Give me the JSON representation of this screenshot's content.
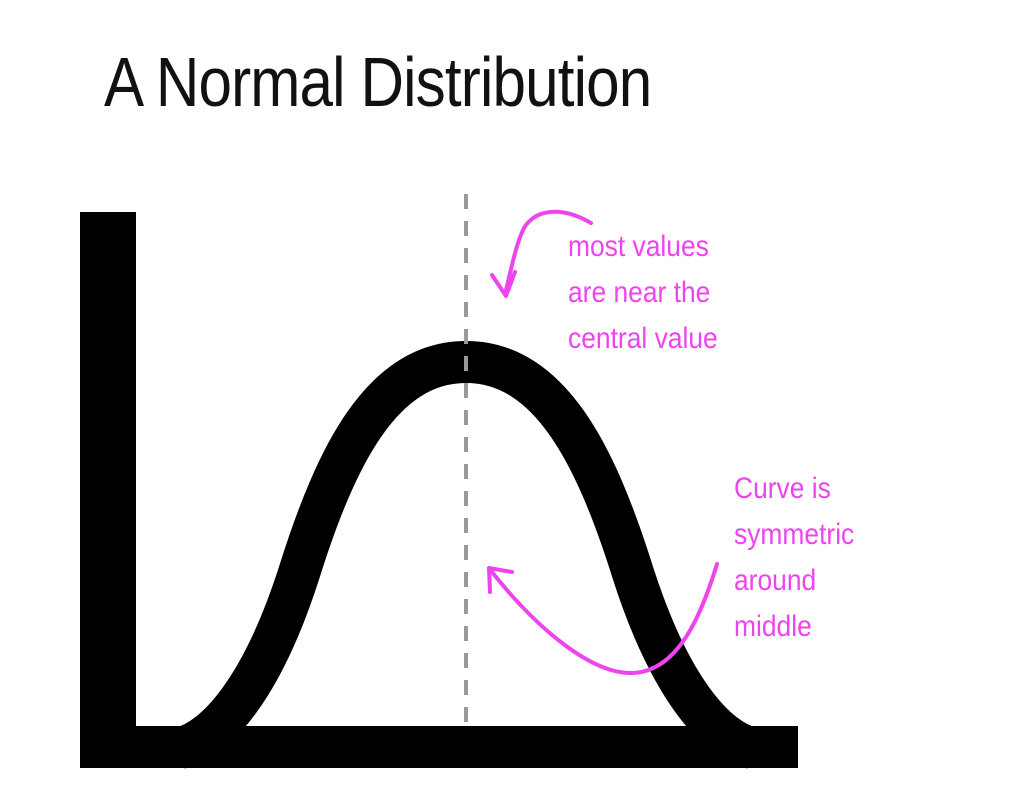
{
  "title": "A Normal Distribution",
  "annotations": {
    "central": {
      "lines": [
        "most values",
        "are near the",
        "central value"
      ]
    },
    "symmetry": {
      "lines": [
        "Curve is",
        "symmetric",
        "around",
        "middle"
      ]
    }
  },
  "colors": {
    "axis": "#000000",
    "curve": "#000000",
    "center_line": "#9a9a9a",
    "annotation": "#ee44ee"
  }
}
